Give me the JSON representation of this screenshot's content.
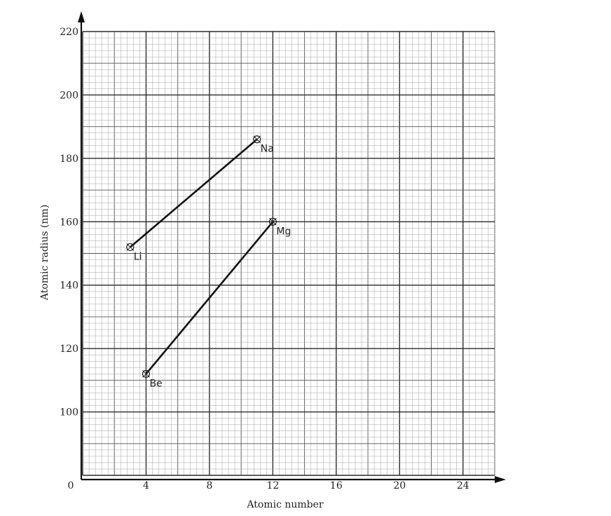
{
  "chart_data": {
    "type": "line",
    "xlabel": "Atomic number",
    "ylabel": "Atomic radius (nm)",
    "origin_label": "0",
    "xlim": [
      0,
      26
    ],
    "ylim": [
      80,
      220
    ],
    "x_ticks": [
      4,
      8,
      12,
      16,
      20,
      24
    ],
    "y_ticks": [
      100,
      120,
      140,
      160,
      180,
      200,
      220
    ],
    "grid": true,
    "series": [
      {
        "points": [
          {
            "x": 3,
            "y": 152,
            "label": "Li"
          },
          {
            "x": 11,
            "y": 186,
            "label": "Na"
          }
        ]
      },
      {
        "points": [
          {
            "x": 4,
            "y": 112,
            "label": "Be"
          },
          {
            "x": 12,
            "y": 160,
            "label": "Mg"
          }
        ]
      }
    ]
  }
}
